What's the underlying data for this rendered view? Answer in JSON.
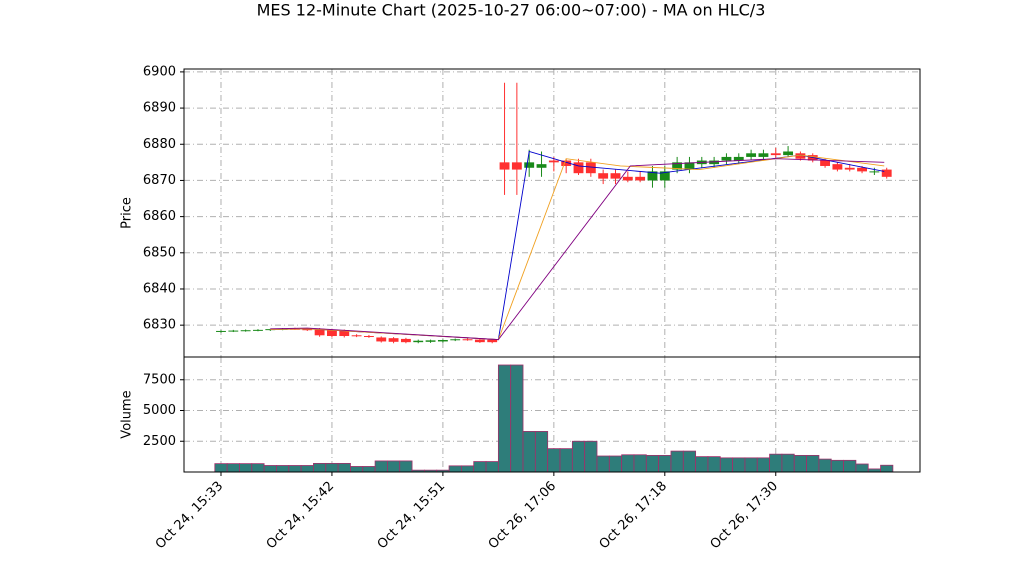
{
  "chart_data": {
    "type": "candlestick",
    "title": "MES 12-Minute Chart (2025-10-27 06:00~07:00) - MA on HLC/3",
    "ylabel": "Price",
    "volume_ylabel": "Volume",
    "up_color": "#1a8a1a",
    "down_color": "#ff3030",
    "volume_color": "#2e7d7a",
    "volume_edge_color": "#a0306a",
    "grid": true,
    "xlim": [
      -3,
      56.7
    ],
    "xticks": [
      {
        "value": 0,
        "label": "Oct 24, 15:33"
      },
      {
        "value": 9,
        "label": "Oct 24, 15:42"
      },
      {
        "value": 18,
        "label": "Oct 24, 15:51"
      },
      {
        "value": 27,
        "label": "Oct 26, 17:06"
      },
      {
        "value": 36,
        "label": "Oct 26, 17:18"
      },
      {
        "value": 45,
        "label": "Oct 26, 17:30"
      }
    ],
    "ylim": [
      6821.2,
      6900.8
    ],
    "yticks": [
      6830,
      6840,
      6850,
      6860,
      6870,
      6880,
      6890,
      6900
    ],
    "volume_ylim": [
      0,
      9350
    ],
    "volume_yticks": [
      2500,
      5000,
      7500
    ],
    "open": [
      6828.2,
      6828.4,
      6828.5,
      6828.6,
      6828.7,
      6828.9,
      6829.0,
      6828.9,
      6829.0,
      6828.8,
      6828.6,
      6827.2,
      6827.0,
      6826.6,
      6826.4,
      6826.2,
      6825.3,
      6825.4,
      6825.5,
      6825.9,
      6826.1,
      6826.0,
      6826.0,
      6875.0,
      6875.0,
      6873.5,
      6873.5,
      6875.5,
      6875.5,
      6875.0,
      6875.0,
      6872.0,
      6872.0,
      6871.0,
      6871.0,
      6870.0,
      6870.0,
      6873.0,
      6873.0,
      6874.5,
      6874.5,
      6875.5,
      6875.5,
      6876.5,
      6876.5,
      6877.5,
      6877.0,
      6877.5,
      6877.0,
      6875.5,
      6874.5,
      6873.5,
      6873.5,
      6872.5,
      6873.0
    ],
    "high": [
      6828.6,
      6828.7,
      6828.8,
      6828.9,
      6829.0,
      6829.2,
      6829.3,
      6829.2,
      6829.2,
      6829.0,
      6828.8,
      6827.5,
      6827.3,
      6826.9,
      6826.7,
      6826.5,
      6826.0,
      6826.0,
      6826.1,
      6826.3,
      6826.4,
      6826.2,
      6826.2,
      6897.0,
      6897.0,
      6878.5,
      6878.0,
      6876.5,
      6876.0,
      6876.0,
      6876.0,
      6873.0,
      6873.0,
      6872.5,
      6872.5,
      6874.0,
      6874.0,
      6876.5,
      6876.5,
      6876.5,
      6876.5,
      6877.5,
      6877.5,
      6878.5,
      6878.5,
      6879.0,
      6879.5,
      6878.0,
      6877.5,
      6876.0,
      6875.0,
      6874.5,
      6874.0,
      6873.5,
      6873.5
    ],
    "low": [
      6827.9,
      6828.1,
      6828.2,
      6828.3,
      6828.4,
      6828.6,
      6828.7,
      6828.4,
      6826.8,
      6826.6,
      6826.6,
      6826.7,
      6826.5,
      6825.2,
      6825.0,
      6825.0,
      6825.0,
      6825.1,
      6825.2,
      6825.6,
      6825.7,
      6825.1,
      6825.0,
      6866.0,
      6866.0,
      6871.0,
      6871.0,
      6872.5,
      6872.0,
      6871.5,
      6871.0,
      6869.0,
      6869.0,
      6869.5,
      6869.5,
      6868.0,
      6868.0,
      6872.0,
      6872.0,
      6873.5,
      6873.5,
      6874.5,
      6874.5,
      6875.5,
      6875.5,
      6876.0,
      6876.5,
      6875.5,
      6875.0,
      6873.5,
      6872.5,
      6872.5,
      6872.0,
      6871.5,
      6870.5
    ],
    "close": [
      6828.4,
      6828.5,
      6828.6,
      6828.7,
      6828.9,
      6829.0,
      6828.9,
      6828.6,
      6827.2,
      6827.0,
      6827.0,
      6827.0,
      6826.8,
      6825.5,
      6825.4,
      6825.3,
      6825.7,
      6825.8,
      6825.9,
      6826.1,
      6826.0,
      6825.3,
      6825.3,
      6873.0,
      6873.0,
      6875.0,
      6874.5,
      6875.0,
      6874.0,
      6872.0,
      6872.0,
      6870.5,
      6870.5,
      6870.0,
      6870.0,
      6872.5,
      6872.5,
      6875.0,
      6875.0,
      6875.5,
      6875.5,
      6876.5,
      6876.5,
      6877.5,
      6877.5,
      6877.0,
      6878.0,
      6876.0,
      6875.5,
      6874.0,
      6873.0,
      6873.0,
      6872.5,
      6872.5,
      6871.0
    ],
    "volume": [
      680,
      680,
      680,
      680,
      530,
      530,
      530,
      530,
      700,
      700,
      700,
      450,
      450,
      900,
      900,
      900,
      150,
      150,
      150,
      500,
      500,
      850,
      850,
      8700,
      8700,
      3300,
      3300,
      1900,
      1900,
      2500,
      2500,
      1300,
      1300,
      1400,
      1400,
      1350,
      1350,
      1700,
      1700,
      1250,
      1250,
      1150,
      1150,
      1150,
      1150,
      1450,
      1450,
      1350,
      1350,
      1050,
      950,
      950,
      650,
      250,
      550
    ],
    "series": [
      {
        "color": "#0000cc",
        "x": [
          4,
          7,
          22.5,
          25,
          29,
          35.6,
          47,
          53.8
        ],
        "values": [
          6828.8,
          6829,
          6826,
          6878,
          6874,
          6872,
          6877,
          6872.5
        ]
      },
      {
        "color": "#f0a020",
        "x": [
          4,
          7,
          22.5,
          28,
          32.4,
          38.8,
          47,
          53.8
        ],
        "values": [
          6828.8,
          6829,
          6826,
          6876,
          6874,
          6873,
          6877,
          6874
        ]
      },
      {
        "color": "#800080",
        "x": [
          4,
          7,
          22.5,
          33.2,
          45,
          53.8
        ],
        "values": [
          6829,
          6829.2,
          6826,
          6874,
          6876,
          6875
        ]
      }
    ]
  }
}
